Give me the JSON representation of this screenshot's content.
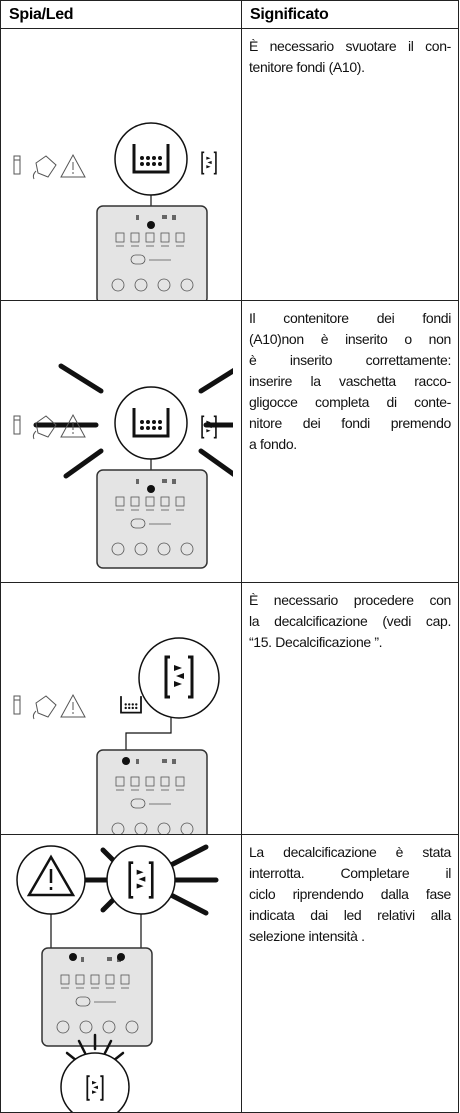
{
  "table": {
    "header": [
      "Spia/Led",
      "Significato"
    ],
    "rows": [
      [
        "È necessario svuotare il con-",
        "tenitore fondi  (A10)."
      ],
      [
        "Il contenitore dei fondi",
        "(A10)non è inserito o non",
        "è inserito correttamente:",
        "inserire la vaschetta racco-",
        "gligocce completa di conte-",
        "nitore dei fondi premendo",
        "a fondo."
      ],
      [
        "È necessario procedere con",
        "la decalcificazione (vedi cap.",
        "“15. Decalcificazione ”."
      ],
      [
        "La decalcificazione è stata",
        "interrotta. Completare il",
        "ciclo riprendendo dalla fase",
        "indicata dai led relativi alla",
        "selezione intensità ."
      ]
    ]
  }
}
